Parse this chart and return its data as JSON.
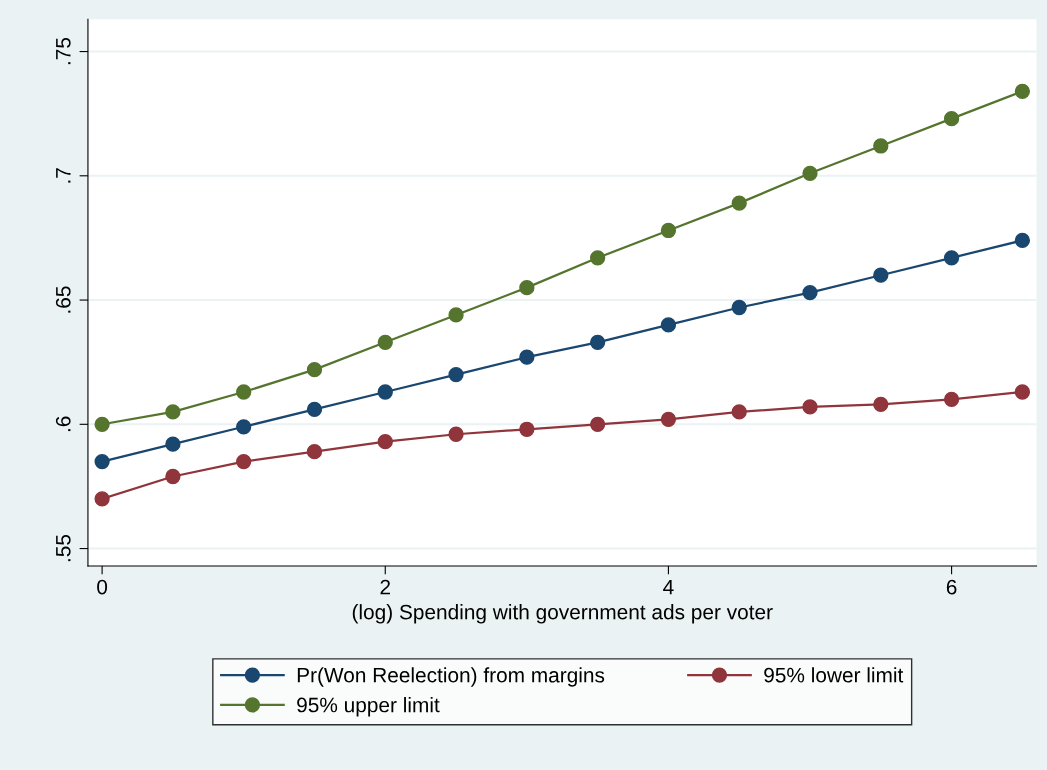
{
  "chart_data": {
    "type": "line",
    "xlabel": "(log) Spending with government ads per voter",
    "x": [
      0,
      0.5,
      1,
      1.5,
      2,
      2.5,
      3,
      3.5,
      4,
      4.5,
      5,
      5.5,
      6,
      6.5
    ],
    "series": [
      {
        "name": "Pr(Won Reelection) from margins",
        "color": "#1a476f",
        "values": [
          0.585,
          0.592,
          0.599,
          0.606,
          0.613,
          0.62,
          0.627,
          0.633,
          0.64,
          0.647,
          0.653,
          0.66,
          0.667,
          0.674
        ]
      },
      {
        "name": "95% lower limit",
        "color": "#90353b",
        "values": [
          0.57,
          0.579,
          0.585,
          0.589,
          0.593,
          0.596,
          0.598,
          0.6,
          0.602,
          0.605,
          0.607,
          0.608,
          0.61,
          0.613
        ]
      },
      {
        "name": "95% upper limit",
        "color": "#55752f",
        "values": [
          0.6,
          0.605,
          0.613,
          0.622,
          0.633,
          0.644,
          0.655,
          0.667,
          0.678,
          0.689,
          0.701,
          0.712,
          0.723,
          0.734
        ]
      }
    ],
    "xlim": [
      -0.1,
      6.6
    ],
    "xticks": [
      0,
      2,
      4,
      6
    ],
    "ylim": [
      0.543,
      0.763
    ],
    "yticks": [
      {
        "value": 0.55,
        "label": ".55"
      },
      {
        "value": 0.6,
        "label": ".6"
      },
      {
        "value": 0.65,
        "label": ".65"
      },
      {
        "value": 0.7,
        "label": ".7"
      },
      {
        "value": 0.75,
        "label": ".75"
      }
    ],
    "grid": "y",
    "legend": "bottom",
    "marker": "circle",
    "line_style": "solid"
  }
}
